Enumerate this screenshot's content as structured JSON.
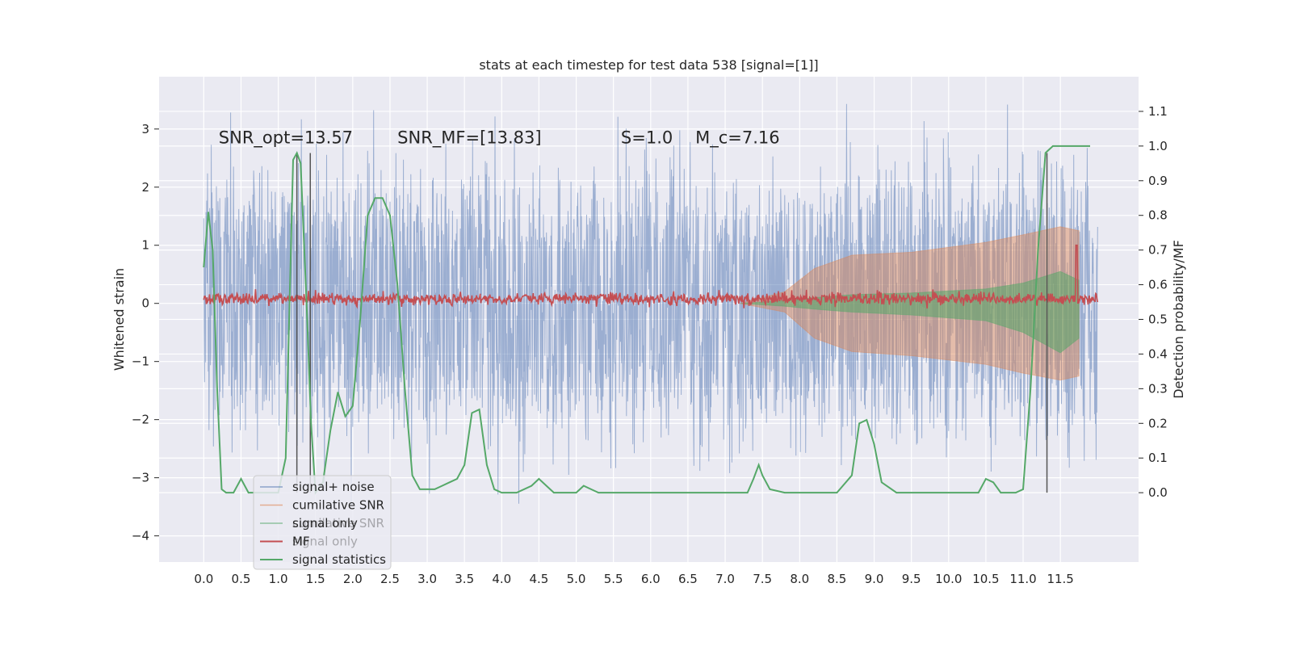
{
  "chart_data": {
    "type": "line",
    "title": "stats at each timestep for test data 538 [signal=[1]]",
    "ylabel": "Whitened strain",
    "ylabel_right": "Detection probability/MF",
    "xlim": [
      -0.6,
      12.55
    ],
    "ylim": [
      -4.45,
      3.9
    ],
    "ylim_right": [
      -0.2,
      1.2
    ],
    "xticks": [
      "0.0",
      "0.5",
      "1.0",
      "1.5",
      "2.0",
      "2.5",
      "3.0",
      "3.5",
      "4.0",
      "4.5",
      "5.0",
      "5.5",
      "6.0",
      "6.5",
      "7.0",
      "7.5",
      "8.0",
      "8.5",
      "9.0",
      "9.5",
      "10.0",
      "10.5",
      "11.0",
      "11.5"
    ],
    "yticks": [
      "3",
      "2",
      "1",
      "0",
      "−1",
      "−2",
      "−3",
      "−4"
    ],
    "yticks_right": [
      "1.1",
      "1.0",
      "0.9",
      "0.8",
      "0.7",
      "0.6",
      "0.5",
      "0.4",
      "0.3",
      "0.2",
      "0.1",
      "0.0"
    ],
    "annotations": [
      {
        "text": "SNR_opt=13.57",
        "x": 0.2,
        "y": 2.85
      },
      {
        "text": "SNR_MF=[13.83]",
        "x": 2.6,
        "y": 2.85
      },
      {
        "text": "S=1.0",
        "x": 5.6,
        "y": 2.85
      },
      {
        "text": "M_c=7.16",
        "x": 6.6,
        "y": 2.85
      }
    ],
    "colors": {
      "background": "#eaeaf2",
      "grid": "#ffffff",
      "noise": "#4c72b0",
      "cumulative_snr": "#dd8452",
      "signal_only": "#55a868",
      "mf": "#c44e52",
      "statistics": "#55a868",
      "markers": "#555555"
    },
    "legend": {
      "placement": "lower-left",
      "entries": [
        {
          "label": "signal+ noise",
          "color": "#4c72b0"
        },
        {
          "label": "cumilative SNR",
          "color": "#dd8452"
        },
        {
          "label": "signal only",
          "color": "#55a868"
        },
        {
          "label": "MF",
          "color": "#c44e52"
        },
        {
          "label": "signal statistics",
          "color": "#55a868"
        }
      ],
      "ghost_entries": [
        {
          "label": "cumilative SNR"
        },
        {
          "label": "signal only"
        }
      ]
    },
    "vertical_markers": [
      1.25,
      1.43,
      11.32
    ],
    "series": [
      {
        "name": "signal+ noise",
        "x_range": [
          0.0,
          12.0
        ],
        "amplitude_typical": 1.5,
        "peak_max": 3.55,
        "trough_min": -4.05
      },
      {
        "name": "cumilative SNR",
        "x": [
          7.2,
          7.8,
          8.2,
          8.7,
          9.5,
          10.5,
          11.0,
          11.5,
          11.75
        ],
        "upper": [
          0.0,
          0.2,
          0.6,
          0.83,
          0.88,
          1.05,
          1.18,
          1.32,
          1.25
        ],
        "lower": [
          0.0,
          -0.15,
          -0.6,
          -0.83,
          -0.9,
          -1.05,
          -1.2,
          -1.32,
          -1.25
        ]
      },
      {
        "name": "signal only",
        "x": [
          7.2,
          7.8,
          8.2,
          8.7,
          9.5,
          10.5,
          11.0,
          11.5,
          11.75
        ],
        "upper": [
          0.0,
          0.05,
          0.1,
          0.15,
          0.18,
          0.25,
          0.35,
          0.55,
          0.4
        ],
        "lower": [
          0.0,
          -0.05,
          -0.1,
          -0.15,
          -0.2,
          -0.3,
          -0.5,
          -0.85,
          -0.6
        ]
      },
      {
        "name": "MF",
        "x_range": [
          0.0,
          12.0
        ],
        "mean": 0.08,
        "amplitude": 0.1,
        "spike": {
          "x": 11.72,
          "y": 1.0
        }
      },
      {
        "name": "signal statistics",
        "axis": "right",
        "x": [
          0.0,
          0.06,
          0.12,
          0.18,
          0.24,
          0.3,
          0.4,
          0.5,
          0.6,
          0.7,
          0.8,
          0.9,
          1.0,
          1.1,
          1.2,
          1.25,
          1.3,
          1.38,
          1.44,
          1.5,
          1.6,
          1.7,
          1.8,
          1.9,
          2.0,
          2.1,
          2.2,
          2.3,
          2.4,
          2.5,
          2.6,
          2.7,
          2.8,
          2.9,
          3.0,
          3.1,
          3.2,
          3.3,
          3.4,
          3.5,
          3.6,
          3.7,
          3.8,
          3.9,
          4.0,
          4.2,
          4.4,
          4.5,
          4.6,
          4.7,
          4.8,
          5.0,
          5.1,
          5.2,
          5.3,
          5.4,
          5.6,
          6.0,
          6.5,
          7.0,
          7.3,
          7.38,
          7.45,
          7.5,
          7.6,
          7.8,
          8.0,
          8.5,
          8.7,
          8.8,
          8.9,
          9.0,
          9.1,
          9.3,
          9.6,
          10.0,
          10.2,
          10.4,
          10.5,
          10.6,
          10.7,
          10.9,
          11.0,
          11.1,
          11.2,
          11.3,
          11.4,
          11.5,
          11.6,
          11.9
        ],
        "y": [
          0.65,
          0.81,
          0.7,
          0.3,
          0.01,
          0.0,
          0.0,
          0.04,
          0.0,
          0.0,
          0.0,
          0.0,
          0.0,
          0.1,
          0.96,
          0.98,
          0.95,
          0.55,
          0.2,
          0.0,
          0.03,
          0.18,
          0.29,
          0.22,
          0.25,
          0.5,
          0.8,
          0.85,
          0.85,
          0.8,
          0.6,
          0.3,
          0.05,
          0.01,
          0.01,
          0.01,
          0.02,
          0.03,
          0.04,
          0.08,
          0.23,
          0.24,
          0.08,
          0.01,
          0.0,
          0.0,
          0.02,
          0.04,
          0.02,
          0.0,
          0.0,
          0.0,
          0.02,
          0.01,
          0.0,
          0.0,
          0.0,
          0.0,
          0.0,
          0.0,
          0.0,
          0.04,
          0.08,
          0.05,
          0.01,
          0.0,
          0.0,
          0.0,
          0.05,
          0.2,
          0.21,
          0.14,
          0.03,
          0.0,
          0.0,
          0.0,
          0.0,
          0.0,
          0.04,
          0.03,
          0.0,
          0.0,
          0.01,
          0.3,
          0.7,
          0.98,
          1.0,
          1.0,
          1.0,
          1.0
        ]
      }
    ]
  }
}
